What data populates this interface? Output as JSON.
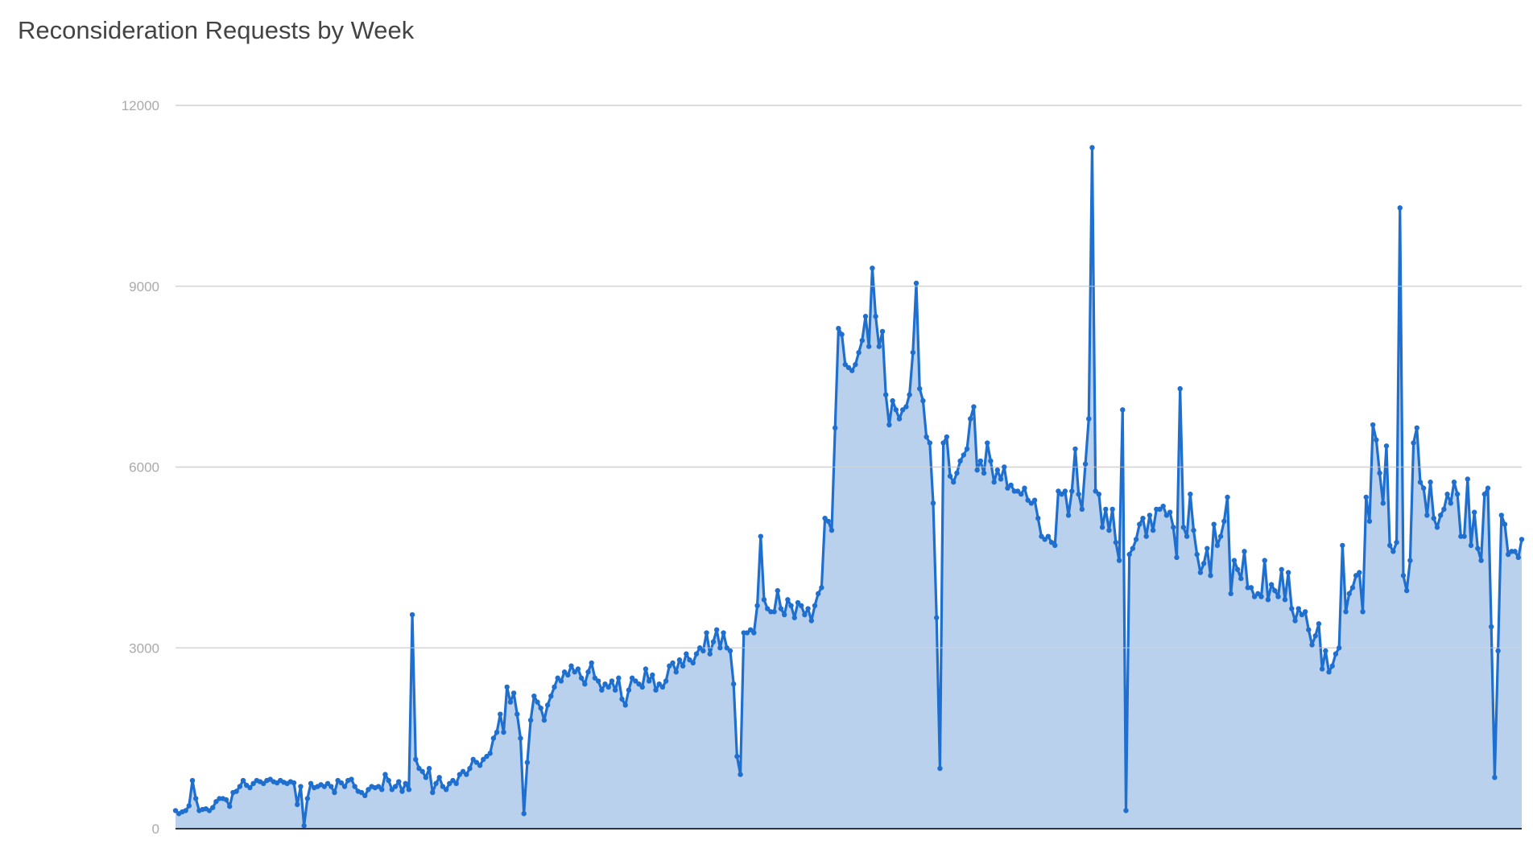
{
  "chart_data": {
    "type": "area",
    "title": "Reconsideration Requests by Week",
    "xlabel": "",
    "ylabel": "",
    "ylim": [
      0,
      12000
    ],
    "y_ticks": [
      {
        "value": 0,
        "label": "0"
      },
      {
        "value": 3000,
        "label": "3000"
      },
      {
        "value": 6000,
        "label": "6000"
      },
      {
        "value": 9000,
        "label": "9000"
      },
      {
        "value": 12000,
        "label": "12000"
      }
    ],
    "grid": true,
    "legend": "none",
    "colors": {
      "line": "#1f6fcf",
      "fill": "#bad1ee",
      "grid": "#d4d4d4",
      "baseline": "#333333"
    },
    "series": [
      {
        "values": [
          300,
          250,
          280,
          300,
          380,
          800,
          500,
          300,
          320,
          330,
          300,
          350,
          450,
          500,
          500,
          480,
          370,
          600,
          620,
          700,
          800,
          720,
          680,
          750,
          800,
          780,
          750,
          800,
          820,
          780,
          760,
          800,
          770,
          750,
          780,
          760,
          400,
          700,
          50,
          500,
          750,
          680,
          700,
          730,
          700,
          750,
          700,
          600,
          800,
          760,
          700,
          800,
          820,
          700,
          620,
          600,
          550,
          650,
          700,
          680,
          700,
          650,
          900,
          800,
          650,
          700,
          780,
          620,
          750,
          650,
          3550,
          1150,
          1000,
          950,
          850,
          1000,
          600,
          750,
          850,
          700,
          650,
          750,
          800,
          750,
          900,
          950,
          900,
          1000,
          1150,
          1100,
          1050,
          1150,
          1200,
          1250,
          1500,
          1600,
          1900,
          1600,
          2350,
          2100,
          2250,
          1900,
          1500,
          250,
          1100,
          1800,
          2200,
          2100,
          2000,
          1800,
          2050,
          2200,
          2350,
          2500,
          2450,
          2600,
          2550,
          2700,
          2600,
          2650,
          2500,
          2400,
          2600,
          2750,
          2500,
          2450,
          2300,
          2400,
          2350,
          2450,
          2300,
          2500,
          2150,
          2050,
          2300,
          2500,
          2450,
          2400,
          2350,
          2650,
          2450,
          2550,
          2300,
          2400,
          2350,
          2450,
          2700,
          2750,
          2600,
          2800,
          2700,
          2900,
          2800,
          2750,
          2900,
          3000,
          2950,
          3250,
          2900,
          3100,
          3300,
          3000,
          3250,
          3000,
          2950,
          2400,
          1200,
          900,
          3250,
          3250,
          3300,
          3250,
          3700,
          4850,
          3800,
          3650,
          3600,
          3600,
          3950,
          3650,
          3550,
          3800,
          3700,
          3500,
          3750,
          3700,
          3550,
          3650,
          3450,
          3700,
          3900,
          4000,
          5150,
          5100,
          4950,
          6650,
          8300,
          8200,
          7700,
          7650,
          7600,
          7700,
          7900,
          8100,
          8500,
          8000,
          9300,
          8500,
          8000,
          8250,
          7200,
          6700,
          7100,
          6950,
          6800,
          6950,
          7000,
          7200,
          7900,
          9050,
          7300,
          7100,
          6500,
          6400,
          5400,
          3500,
          1000,
          6400,
          6500,
          5850,
          5750,
          5900,
          6100,
          6200,
          6300,
          6800,
          7000,
          5950,
          6100,
          5900,
          6400,
          6100,
          5750,
          5950,
          5800,
          6000,
          5650,
          5700,
          5600,
          5600,
          5550,
          5650,
          5450,
          5400,
          5450,
          5150,
          4850,
          4800,
          4850,
          4750,
          4700,
          5600,
          5550,
          5600,
          5200,
          5600,
          6300,
          5550,
          5300,
          6050,
          6800,
          11300,
          5600,
          5550,
          5000,
          5300,
          4950,
          5300,
          4750,
          4450,
          6950,
          300,
          4550,
          4650,
          4800,
          5050,
          5150,
          4850,
          5200,
          4950,
          5300,
          5300,
          5350,
          5200,
          5250,
          5000,
          4500,
          7300,
          5000,
          4850,
          5550,
          4950,
          4550,
          4250,
          4400,
          4650,
          4200,
          5050,
          4700,
          4850,
          5100,
          5500,
          3900,
          4450,
          4300,
          4150,
          4600,
          4000,
          4000,
          3850,
          3900,
          3850,
          4450,
          3800,
          4050,
          3950,
          3850,
          4300,
          3800,
          4250,
          3650,
          3450,
          3650,
          3550,
          3600,
          3300,
          3050,
          3200,
          3400,
          2650,
          2950,
          2600,
          2700,
          2900,
          3000,
          4700,
          3600,
          3900,
          4000,
          4200,
          4250,
          3600,
          5500,
          5100,
          6700,
          6450,
          5900,
          5400,
          6350,
          4700,
          4600,
          4750,
          10300,
          4200,
          3950,
          4450,
          6400,
          6650,
          5750,
          5650,
          5200,
          5750,
          5150,
          5000,
          5200,
          5300,
          5550,
          5400,
          5750,
          5550,
          4850,
          4850,
          5800,
          4700,
          5250,
          4650,
          4450,
          5550,
          5650,
          3350,
          850,
          2950,
          5200,
          5050,
          4550,
          4600,
          4600,
          4500,
          4800
        ]
      }
    ]
  }
}
